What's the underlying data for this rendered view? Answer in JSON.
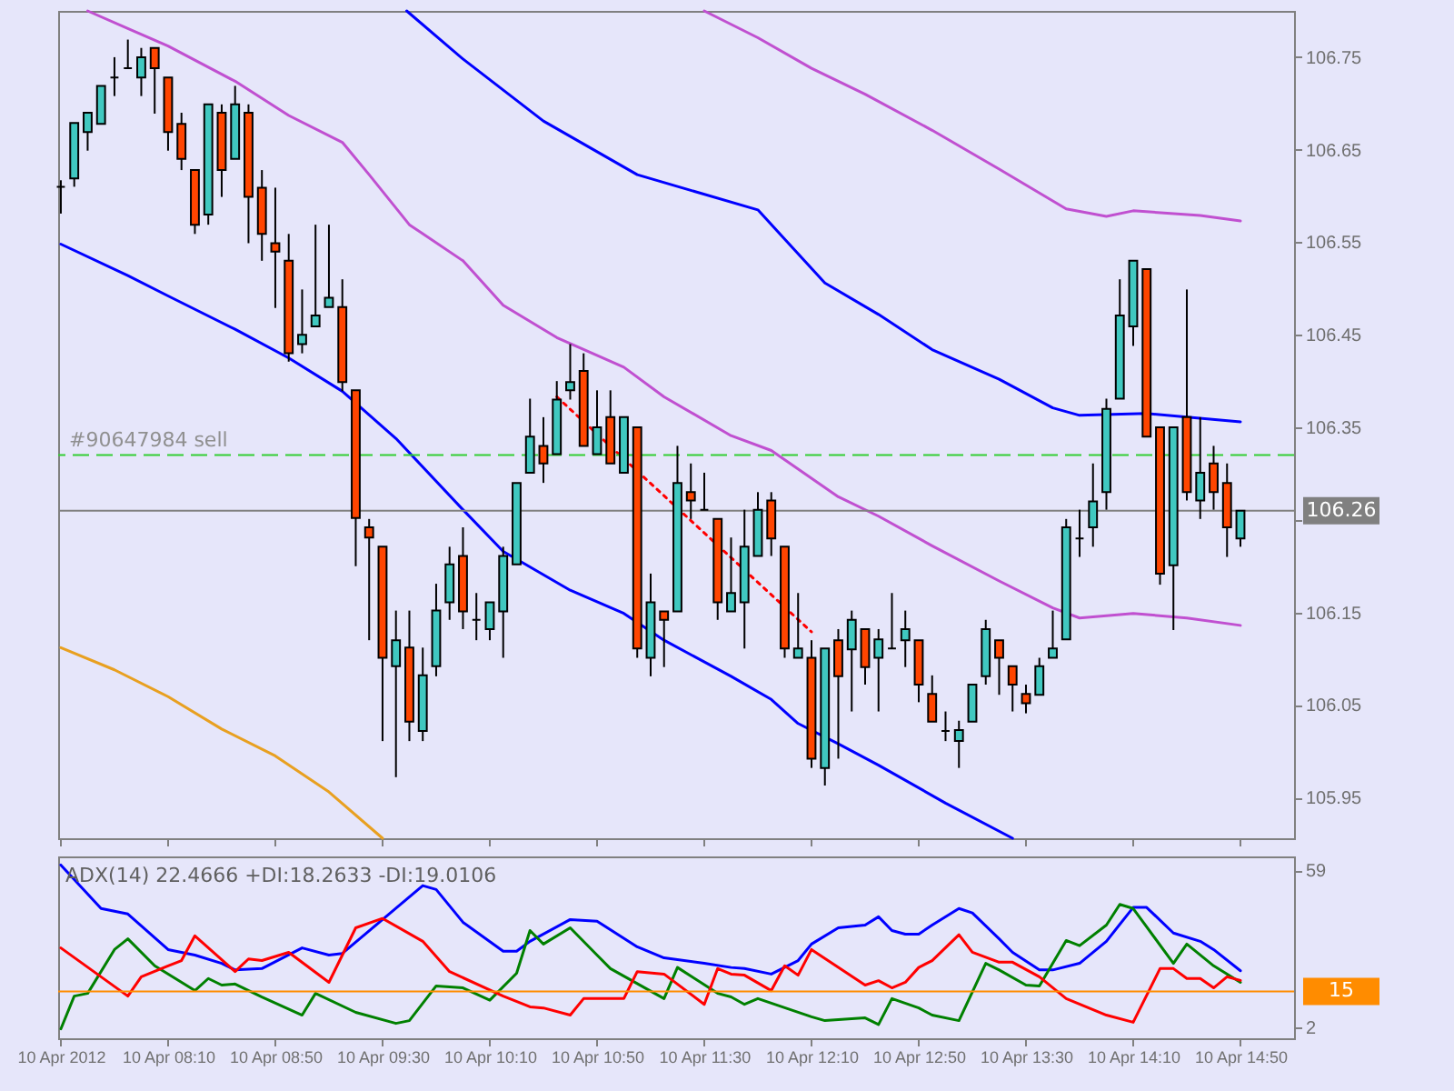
{
  "chart_data": [
    {
      "type": "candlestick",
      "x": [
        "2012-04-10T07:30",
        "2012-04-10T07:35",
        "2012-04-10T07:40",
        "2012-04-10T07:45",
        "2012-04-10T07:50",
        "2012-04-10T07:55",
        "2012-04-10T08:00",
        "2012-04-10T08:05",
        "2012-04-10T08:10",
        "2012-04-10T08:15",
        "2012-04-10T08:20",
        "2012-04-10T08:25",
        "2012-04-10T08:30",
        "2012-04-10T08:35",
        "2012-04-10T08:40",
        "2012-04-10T08:45",
        "2012-04-10T08:50",
        "2012-04-10T08:55",
        "2012-04-10T09:00",
        "2012-04-10T09:05",
        "2012-04-10T09:10",
        "2012-04-10T09:15",
        "2012-04-10T09:20",
        "2012-04-10T09:25",
        "2012-04-10T09:30",
        "2012-04-10T09:35",
        "2012-04-10T09:40",
        "2012-04-10T09:45",
        "2012-04-10T09:50",
        "2012-04-10T09:55",
        "2012-04-10T10:00",
        "2012-04-10T10:05",
        "2012-04-10T10:10",
        "2012-04-10T10:15",
        "2012-04-10T10:20",
        "2012-04-10T10:25",
        "2012-04-10T10:30",
        "2012-04-10T10:35",
        "2012-04-10T10:40",
        "2012-04-10T10:45",
        "2012-04-10T10:50",
        "2012-04-10T10:55",
        "2012-04-10T11:00",
        "2012-04-10T11:05",
        "2012-04-10T11:10",
        "2012-04-10T11:15",
        "2012-04-10T11:20",
        "2012-04-10T11:25",
        "2012-04-10T11:30",
        "2012-04-10T11:35",
        "2012-04-10T11:40",
        "2012-04-10T11:45",
        "2012-04-10T11:50",
        "2012-04-10T11:55",
        "2012-04-10T12:00",
        "2012-04-10T12:05",
        "2012-04-10T12:10",
        "2012-04-10T12:15",
        "2012-04-10T12:20",
        "2012-04-10T12:25",
        "2012-04-10T12:30",
        "2012-04-10T12:35",
        "2012-04-10T12:40",
        "2012-04-10T12:45",
        "2012-04-10T12:50",
        "2012-04-10T12:55",
        "2012-04-10T13:00",
        "2012-04-10T13:05",
        "2012-04-10T13:10",
        "2012-04-10T13:15",
        "2012-04-10T13:20",
        "2012-04-10T13:25",
        "2012-04-10T13:30",
        "2012-04-10T13:35",
        "2012-04-10T13:40",
        "2012-04-10T13:45",
        "2012-04-10T13:50",
        "2012-04-10T13:55",
        "2012-04-10T14:00",
        "2012-04-10T14:05",
        "2012-04-10T14:10",
        "2012-04-10T14:15",
        "2012-04-10T14:20",
        "2012-04-10T14:25",
        "2012-04-10T14:30",
        "2012-04-10T14:35",
        "2012-04-10T14:40",
        "2012-04-10T14:45",
        "2012-04-10T14:50"
      ],
      "ohlc": [
        [
          106.61,
          106.617,
          106.581,
          106.61
        ],
        [
          106.619,
          106.679,
          106.61,
          106.679
        ],
        [
          106.669,
          106.69,
          106.649,
          106.69
        ],
        [
          106.678,
          106.719,
          106.678,
          106.719
        ],
        [
          106.728,
          106.75,
          106.708,
          106.728
        ],
        [
          106.738,
          106.769,
          106.738,
          106.738
        ],
        [
          106.728,
          106.76,
          106.708,
          106.75
        ],
        [
          106.76,
          106.76,
          106.689,
          106.738
        ],
        [
          106.728,
          106.728,
          106.649,
          106.669
        ],
        [
          106.678,
          106.69,
          106.628,
          106.64
        ],
        [
          106.628,
          106.628,
          106.559,
          106.569
        ],
        [
          106.58,
          106.699,
          106.569,
          106.699
        ],
        [
          106.69,
          106.699,
          106.599,
          106.628
        ],
        [
          106.64,
          106.719,
          106.64,
          106.699
        ],
        [
          106.69,
          106.699,
          106.549,
          106.599
        ],
        [
          106.609,
          106.628,
          106.53,
          106.559
        ],
        [
          106.549,
          106.609,
          106.479,
          106.54
        ],
        [
          106.53,
          106.559,
          106.421,
          106.43
        ],
        [
          106.44,
          106.499,
          106.43,
          106.45
        ],
        [
          106.459,
          106.569,
          106.459,
          106.471
        ],
        [
          106.48,
          106.569,
          106.48,
          106.49
        ],
        [
          106.48,
          106.51,
          106.389,
          106.399
        ],
        [
          106.39,
          106.39,
          106.2,
          106.252
        ],
        [
          106.242,
          106.251,
          106.12,
          106.231
        ],
        [
          106.221,
          106.221,
          106.011,
          106.101
        ],
        [
          106.092,
          106.152,
          105.972,
          106.12
        ],
        [
          106.112,
          106.152,
          106.011,
          106.032
        ],
        [
          106.022,
          106.112,
          106.011,
          106.082
        ],
        [
          106.092,
          106.181,
          106.081,
          106.152
        ],
        [
          106.161,
          106.221,
          106.142,
          106.202
        ],
        [
          106.211,
          106.242,
          106.132,
          106.151
        ],
        [
          106.142,
          106.171,
          106.12,
          106.142
        ],
        [
          106.132,
          106.161,
          106.12,
          106.161
        ],
        [
          106.151,
          106.221,
          106.101,
          106.211
        ],
        [
          106.202,
          106.29,
          106.202,
          106.29
        ],
        [
          106.301,
          106.381,
          106.301,
          106.34
        ],
        [
          106.33,
          106.361,
          106.29,
          106.311
        ],
        [
          106.321,
          106.4,
          106.321,
          106.38
        ],
        [
          106.39,
          106.44,
          106.38,
          106.399
        ],
        [
          106.411,
          106.43,
          106.33,
          106.33
        ],
        [
          106.321,
          106.39,
          106.321,
          106.35
        ],
        [
          106.361,
          106.39,
          106.311,
          106.311
        ],
        [
          106.301,
          106.361,
          106.301,
          106.361
        ],
        [
          106.35,
          106.35,
          106.101,
          106.111
        ],
        [
          106.101,
          106.192,
          106.081,
          106.161
        ],
        [
          106.151,
          106.151,
          106.091,
          106.142
        ],
        [
          106.151,
          106.33,
          106.151,
          106.29
        ],
        [
          106.28,
          106.311,
          106.251,
          106.271
        ],
        [
          106.261,
          106.301,
          106.261,
          106.261
        ],
        [
          106.251,
          106.251,
          106.142,
          106.161
        ],
        [
          106.151,
          106.231,
          106.151,
          106.171
        ],
        [
          106.161,
          106.261,
          106.111,
          106.221
        ],
        [
          106.211,
          106.28,
          106.211,
          106.261
        ],
        [
          106.271,
          106.28,
          106.211,
          106.23
        ],
        [
          106.221,
          106.221,
          106.101,
          106.111
        ],
        [
          106.101,
          106.171,
          106.101,
          106.111
        ],
        [
          106.101,
          106.12,
          105.982,
          105.992
        ],
        [
          105.982,
          106.111,
          105.963,
          106.111
        ],
        [
          106.12,
          106.132,
          105.992,
          106.081
        ],
        [
          106.11,
          106.152,
          106.043,
          106.142
        ],
        [
          106.132,
          106.132,
          106.072,
          106.091
        ],
        [
          106.101,
          106.132,
          106.043,
          106.121
        ],
        [
          106.111,
          106.171,
          106.111,
          106.111
        ],
        [
          106.12,
          106.152,
          106.091,
          106.132
        ],
        [
          106.12,
          106.12,
          106.053,
          106.072
        ],
        [
          106.062,
          106.082,
          106.032,
          106.032
        ],
        [
          106.022,
          106.043,
          106.011,
          106.022
        ],
        [
          106.011,
          106.033,
          105.982,
          106.023
        ],
        [
          106.032,
          106.072,
          106.032,
          106.072
        ],
        [
          106.081,
          106.142,
          106.072,
          106.132
        ],
        [
          106.12,
          106.12,
          106.061,
          106.101
        ],
        [
          106.092,
          106.092,
          106.043,
          106.072
        ],
        [
          106.062,
          106.072,
          106.041,
          106.052
        ],
        [
          106.061,
          106.101,
          106.061,
          106.092
        ],
        [
          106.101,
          106.152,
          106.101,
          106.111
        ],
        [
          106.121,
          106.251,
          106.121,
          106.242
        ],
        [
          106.23,
          106.261,
          106.21,
          106.23
        ],
        [
          106.242,
          106.311,
          106.221,
          106.27
        ],
        [
          106.28,
          106.381,
          106.261,
          106.37
        ],
        [
          106.381,
          106.51,
          106.381,
          106.471
        ],
        [
          106.459,
          106.53,
          106.438,
          106.53
        ],
        [
          106.521,
          106.521,
          106.34,
          106.34
        ],
        [
          106.35,
          106.35,
          106.18,
          106.192
        ],
        [
          106.201,
          106.35,
          106.131,
          106.35
        ],
        [
          106.361,
          106.499,
          106.271,
          106.28
        ],
        [
          106.271,
          106.361,
          106.251,
          106.301
        ],
        [
          106.311,
          106.33,
          106.261,
          106.28
        ],
        [
          106.29,
          106.311,
          106.21,
          106.242
        ],
        [
          106.23,
          106.26,
          106.221,
          106.26
        ]
      ],
      "colors": [
        "#000000",
        "#40c8c0",
        "#40c8c0",
        "#40c8c0",
        "#000000",
        "#000000",
        "#40c8c0",
        "#ff4500",
        "#ff4500",
        "#ff4500",
        "#ff4500",
        "#40c8c0",
        "#ff4500",
        "#40c8c0",
        "#ff4500",
        "#ff4500",
        "#ff4500",
        "#ff4500",
        "#40c8c0",
        "#40c8c0",
        "#40c8c0",
        "#ff4500",
        "#ff4500",
        "#ff4500",
        "#ff4500",
        "#40c8c0",
        "#ff4500",
        "#40c8c0",
        "#40c8c0",
        "#40c8c0",
        "#ff4500",
        "#000000",
        "#40c8c0",
        "#40c8c0",
        "#40c8c0",
        "#40c8c0",
        "#ff4500",
        "#40c8c0",
        "#40c8c0",
        "#ff4500",
        "#40c8c0",
        "#ff4500",
        "#40c8c0",
        "#ff4500",
        "#40c8c0",
        "#ff4500",
        "#40c8c0",
        "#ff4500",
        "#000000",
        "#ff4500",
        "#40c8c0",
        "#40c8c0",
        "#40c8c0",
        "#ff4500",
        "#ff4500",
        "#40c8c0",
        "#ff4500",
        "#40c8c0",
        "#ff4500",
        "#40c8c0",
        "#ff4500",
        "#40c8c0",
        "#000000",
        "#40c8c0",
        "#ff4500",
        "#ff4500",
        "#000000",
        "#40c8c0",
        "#40c8c0",
        "#40c8c0",
        "#ff4500",
        "#ff4500",
        "#ff4500",
        "#40c8c0",
        "#40c8c0",
        "#40c8c0",
        "#000000",
        "#40c8c0",
        "#40c8c0",
        "#40c8c0",
        "#40c8c0",
        "#ff4500",
        "#ff4500",
        "#40c8c0",
        "#ff4500",
        "#40c8c0",
        "#ff4500",
        "#ff4500",
        "#40c8c0"
      ],
      "series": [
        {
          "type": "line",
          "color": "#0000ff",
          "x": [
            "2012-04-10T07:30",
            "2012-04-10T07:55",
            "2012-04-10T08:10",
            "2012-04-10T08:35",
            "2012-04-10T08:55",
            "2012-04-10T09:15",
            "2012-04-10T09:35",
            "2012-04-10T10:00",
            "2012-04-10T10:15",
            "2012-04-10T10:40",
            "2012-04-10T11:00",
            "2012-04-10T11:15",
            "2012-04-10T11:40",
            "2012-04-10T11:55",
            "2012-04-10T12:05",
            "2012-04-10T12:20",
            "2012-04-10T12:35",
            "2012-04-10T13:00",
            "2012-04-10T13:25"
          ],
          "values": [
            106.548,
            106.514,
            106.492,
            106.456,
            106.425,
            106.389,
            106.338,
            106.261,
            106.216,
            106.174,
            106.149,
            106.12,
            106.081,
            106.056,
            106.03,
            106.008,
            105.985,
            105.944,
            105.906
          ]
        },
        {
          "type": "line",
          "color": "#0000ff",
          "x": [
            "2012-04-10T09:39",
            "2012-04-10T10:00",
            "2012-04-10T10:30",
            "2012-04-10T11:05",
            "2012-04-10T11:50",
            "2012-04-10T12:15",
            "2012-04-10T12:35",
            "2012-04-10T12:55",
            "2012-04-10T13:20",
            "2012-04-10T13:40",
            "2012-04-10T13:50",
            "2012-04-10T14:15",
            "2012-04-10T14:50"
          ],
          "values": [
            106.8,
            106.748,
            106.681,
            106.623,
            106.585,
            106.506,
            106.472,
            106.434,
            106.402,
            106.371,
            106.363,
            106.365,
            106.356
          ]
        },
        {
          "type": "line",
          "color": "#c050d0",
          "x": [
            "2012-04-10T11:30",
            "2012-04-10T11:50",
            "2012-04-10T12:10",
            "2012-04-10T12:30",
            "2012-04-10T12:55",
            "2012-04-10T13:20",
            "2012-04-10T13:45",
            "2012-04-10T14:00",
            "2012-04-10T14:10",
            "2012-04-10T14:35",
            "2012-04-10T14:50"
          ],
          "values": [
            106.8,
            106.771,
            106.738,
            106.71,
            106.671,
            106.629,
            106.586,
            106.578,
            106.584,
            106.579,
            106.573
          ]
        },
        {
          "type": "line",
          "color": "#c050d0",
          "x": [
            "2012-04-10T07:40",
            "2012-04-10T07:55",
            "2012-04-10T08:10",
            "2012-04-10T08:35",
            "2012-04-10T08:55",
            "2012-04-10T09:15",
            "2012-04-10T09:25",
            "2012-04-10T09:40",
            "2012-04-10T10:00",
            "2012-04-10T10:15",
            "2012-04-10T10:35",
            "2012-04-10T11:00",
            "2012-04-10T11:15",
            "2012-04-10T11:40",
            "2012-04-10T11:55",
            "2012-04-10T12:20",
            "2012-04-10T12:35",
            "2012-04-10T12:55",
            "2012-04-10T13:20",
            "2012-04-10T13:40",
            "2012-04-10T13:50",
            "2012-04-10T14:10",
            "2012-04-10T14:30",
            "2012-04-10T14:50"
          ],
          "values": [
            106.8,
            106.781,
            106.762,
            106.724,
            106.687,
            106.658,
            106.623,
            106.569,
            106.53,
            106.482,
            106.447,
            106.415,
            106.383,
            106.341,
            106.325,
            106.275,
            106.254,
            106.222,
            106.184,
            106.155,
            106.144,
            106.149,
            106.144,
            106.136
          ]
        },
        {
          "type": "line",
          "color": "#e8a020",
          "x": [
            "2012-04-10T07:30",
            "2012-04-10T07:50",
            "2012-04-10T08:10",
            "2012-04-10T08:30",
            "2012-04-10T08:50",
            "2012-04-10T09:10",
            "2012-04-10T09:30"
          ],
          "values": [
            106.112,
            106.088,
            106.059,
            106.024,
            105.995,
            105.956,
            105.906
          ]
        },
        {
          "type": "line",
          "color": "#ff0000",
          "line_style": "dotted",
          "x": [
            "2012-04-10T10:35",
            "2012-04-10T12:10"
          ],
          "values": [
            106.383,
            106.129
          ]
        }
      ],
      "xlim": [
        "2012-04-10T07:29",
        "2012-04-10T15:10"
      ],
      "xticks": [
        {
          "value": "2012-04-10T07:30",
          "label": null
        },
        {
          "value": "2012-04-10T08:10",
          "label": null
        },
        {
          "value": "2012-04-10T08:50",
          "label": null
        },
        {
          "value": "2012-04-10T09:30",
          "label": null
        },
        {
          "value": "2012-04-10T10:10",
          "label": null
        },
        {
          "value": "2012-04-10T10:50",
          "label": null
        },
        {
          "value": "2012-04-10T11:30",
          "label": null
        },
        {
          "value": "2012-04-10T12:10",
          "label": null
        },
        {
          "value": "2012-04-10T12:50",
          "label": null
        },
        {
          "value": "2012-04-10T13:30",
          "label": null
        },
        {
          "value": "2012-04-10T14:10",
          "label": null
        },
        {
          "value": "2012-04-10T14:50",
          "label": null
        }
      ],
      "ylim": [
        105.906,
        106.8
      ],
      "yticks": [
        105.95,
        106.05,
        106.15,
        {
          "value": 106.25,
          "label": null
        },
        106.35,
        106.45,
        106.55,
        106.65,
        106.75
      ],
      "tick_labels": "y",
      "ref_lines": [
        {
          "axis": "y",
          "value": 106.32,
          "label": "#90647984 sell",
          "color": "#32cd32",
          "line_style": "dashed"
        },
        {
          "axis": "y",
          "value": 106.26,
          "label": "106.26",
          "color": "#808080"
        }
      ]
    },
    {
      "type": "line",
      "title": "ADX(14) 22.4666 +DI:18.2633 -DI:19.0106",
      "series": [
        {
          "color": "#0000ff",
          "x": [
            "2012-04-10T07:30",
            "2012-04-10T07:45",
            "2012-04-10T07:55",
            "2012-04-10T08:10",
            "2012-04-10T08:20",
            "2012-04-10T08:30",
            "2012-04-10T08:35",
            "2012-04-10T08:45",
            "2012-04-10T09:00",
            "2012-04-10T09:10",
            "2012-04-10T09:15",
            "2012-04-10T09:30",
            "2012-04-10T09:45",
            "2012-04-10T09:50",
            "2012-04-10T10:00",
            "2012-04-10T10:15",
            "2012-04-10T10:20",
            "2012-04-10T10:25",
            "2012-04-10T10:40",
            "2012-04-10T10:50",
            "2012-04-10T11:05",
            "2012-04-10T11:15",
            "2012-04-10T11:30",
            "2012-04-10T11:40",
            "2012-04-10T11:45",
            "2012-04-10T11:55",
            "2012-04-10T12:05",
            "2012-04-10T12:10",
            "2012-04-10T12:20",
            "2012-04-10T12:30",
            "2012-04-10T12:35",
            "2012-04-10T12:40",
            "2012-04-10T12:45",
            "2012-04-10T12:50",
            "2012-04-10T12:55",
            "2012-04-10T13:05",
            "2012-04-10T13:10",
            "2012-04-10T13:20",
            "2012-04-10T13:25",
            "2012-04-10T13:35",
            "2012-04-10T13:40",
            "2012-04-10T13:50",
            "2012-04-10T14:00",
            "2012-04-10T14:10",
            "2012-04-10T14:15",
            "2012-04-10T14:25",
            "2012-04-10T14:35",
            "2012-04-10T14:40",
            "2012-04-10T14:50"
          ],
          "values": [
            60.9,
            45.1,
            43.1,
            30.2,
            28.2,
            25.2,
            22.8,
            23.3,
            30.8,
            28.2,
            28.8,
            41.1,
            53.4,
            52,
            40.1,
            29.6,
            29.6,
            33.2,
            41.1,
            40.5,
            31.2,
            27.2,
            25.2,
            23.7,
            23.3,
            21.3,
            26.2,
            32.2,
            38.1,
            39.1,
            42.1,
            37.1,
            35.8,
            35.8,
            39.1,
            45.1,
            43.5,
            34.1,
            29.2,
            22.8,
            22.8,
            25.2,
            33.2,
            45.5,
            45.5,
            36.2,
            33.2,
            30.2,
            22.5
          ]
        },
        {
          "color": "#008000",
          "x": [
            "2012-04-10T07:30",
            "2012-04-10T07:35",
            "2012-04-10T07:40",
            "2012-04-10T07:50",
            "2012-04-10T07:55",
            "2012-04-10T08:05",
            "2012-04-10T08:20",
            "2012-04-10T08:25",
            "2012-04-10T08:30",
            "2012-04-10T08:35",
            "2012-04-10T08:45",
            "2012-04-10T09:00",
            "2012-04-10T09:05",
            "2012-04-10T09:20",
            "2012-04-10T09:35",
            "2012-04-10T09:40",
            "2012-04-10T09:50",
            "2012-04-10T10:00",
            "2012-04-10T10:10",
            "2012-04-10T10:20",
            "2012-04-10T10:25",
            "2012-04-10T10:30",
            "2012-04-10T10:40",
            "2012-04-10T10:50",
            "2012-04-10T10:55",
            "2012-04-10T11:15",
            "2012-04-10T11:20",
            "2012-04-10T11:35",
            "2012-04-10T11:40",
            "2012-04-10T11:45",
            "2012-04-10T11:50",
            "2012-04-10T12:10",
            "2012-04-10T12:15",
            "2012-04-10T12:30",
            "2012-04-10T12:35",
            "2012-04-10T12:40",
            "2012-04-10T12:50",
            "2012-04-10T12:55",
            "2012-04-10T13:05",
            "2012-04-10T13:15",
            "2012-04-10T13:20",
            "2012-04-10T13:30",
            "2012-04-10T13:35",
            "2012-04-10T13:45",
            "2012-04-10T13:50",
            "2012-04-10T14:00",
            "2012-04-10T14:05",
            "2012-04-10T14:10",
            "2012-04-10T14:25",
            "2012-04-10T14:30",
            "2012-04-10T14:40",
            "2012-04-10T14:50"
          ],
          "values": [
            1.4,
            13.3,
            14.3,
            30.2,
            34.1,
            24.3,
            15.3,
            19.7,
            17.3,
            17.7,
            13,
            6.4,
            14.3,
            7.4,
            3.4,
            4.4,
            17,
            16.3,
            11.8,
            21.6,
            37.1,
            32.2,
            38.1,
            28.2,
            23.3,
            12.4,
            23.7,
            14.3,
            13,
            10.3,
            12.4,
            5.8,
            4.4,
            5.4,
            3,
            12.4,
            9,
            6.4,
            4.4,
            25.2,
            22.8,
            17.3,
            17,
            33.5,
            31.6,
            39.1,
            46.6,
            45.1,
            25.2,
            32.2,
            24.3,
            18.3
          ]
        },
        {
          "color": "#ff0000",
          "x": [
            "2012-04-10T07:30",
            "2012-04-10T07:55",
            "2012-04-10T08:00",
            "2012-04-10T08:10",
            "2012-04-10T08:15",
            "2012-04-10T08:20",
            "2012-04-10T08:35",
            "2012-04-10T08:40",
            "2012-04-10T08:45",
            "2012-04-10T08:55",
            "2012-04-10T09:10",
            "2012-04-10T09:20",
            "2012-04-10T09:30",
            "2012-04-10T09:45",
            "2012-04-10T09:55",
            "2012-04-10T10:15",
            "2012-04-10T10:25",
            "2012-04-10T10:30",
            "2012-04-10T10:40",
            "2012-04-10T10:45",
            "2012-04-10T11:00",
            "2012-04-10T11:05",
            "2012-04-10T11:15",
            "2012-04-10T11:30",
            "2012-04-10T11:35",
            "2012-04-10T11:40",
            "2012-04-10T11:45",
            "2012-04-10T11:55",
            "2012-04-10T12:00",
            "2012-04-10T12:05",
            "2012-04-10T12:10",
            "2012-04-10T12:30",
            "2012-04-10T12:35",
            "2012-04-10T12:40",
            "2012-04-10T12:45",
            "2012-04-10T12:50",
            "2012-04-10T12:55",
            "2012-04-10T13:05",
            "2012-04-10T13:10",
            "2012-04-10T13:20",
            "2012-04-10T13:25",
            "2012-04-10T13:35",
            "2012-04-10T13:45",
            "2012-04-10T14:00",
            "2012-04-10T14:10",
            "2012-04-10T14:20",
            "2012-04-10T14:25",
            "2012-04-10T14:30",
            "2012-04-10T14:35",
            "2012-04-10T14:40",
            "2012-04-10T14:45",
            "2012-04-10T14:50"
          ],
          "values": [
            30.8,
            13.3,
            20.3,
            24.3,
            26.2,
            35.2,
            22.2,
            26.8,
            26.2,
            29.2,
            18.3,
            38.1,
            41.5,
            33.2,
            22.2,
            13.3,
            9.4,
            9,
            6.4,
            12.4,
            12.4,
            22.2,
            21.3,
            10.3,
            23.3,
            21.3,
            20.9,
            15.3,
            24.3,
            20.9,
            30.2,
            17.3,
            18.9,
            16.3,
            18.3,
            23.7,
            26.2,
            35.6,
            29.2,
            25.6,
            25.6,
            20.3,
            12.4,
            6.4,
            3.8,
            23.3,
            23.3,
            19.7,
            19.7,
            16.3,
            20.3,
            19.0
          ]
        }
      ],
      "xlim": [
        "2012-04-10T07:29",
        "2012-04-10T15:10"
      ],
      "xticks": [
        {
          "value": "2012-04-10T07:30",
          "label": "10 Apr 2012"
        },
        {
          "value": "2012-04-10T08:10",
          "label": "10 Apr 08:10"
        },
        {
          "value": "2012-04-10T08:50",
          "label": "10 Apr 08:50"
        },
        {
          "value": "2012-04-10T09:30",
          "label": "10 Apr 09:30"
        },
        {
          "value": "2012-04-10T10:10",
          "label": "10 Apr 10:10"
        },
        {
          "value": "2012-04-10T10:50",
          "label": "10 Apr 10:50"
        },
        {
          "value": "2012-04-10T11:30",
          "label": "10 Apr 11:30"
        },
        {
          "value": "2012-04-10T12:10",
          "label": "10 Apr 12:10"
        },
        {
          "value": "2012-04-10T12:50",
          "label": "10 Apr 12:50"
        },
        {
          "value": "2012-04-10T13:30",
          "label": "10 Apr 13:30"
        },
        {
          "value": "2012-04-10T14:10",
          "label": "10 Apr 14:10"
        },
        {
          "value": "2012-04-10T14:50",
          "label": "10 Apr 14:50"
        }
      ],
      "ylim": [
        -2,
        64
      ],
      "yticks": [
        59,
        2
      ],
      "ref_lines": [
        {
          "axis": "y",
          "value": 15,
          "label": "15",
          "color": "#ff8c00"
        }
      ]
    }
  ]
}
